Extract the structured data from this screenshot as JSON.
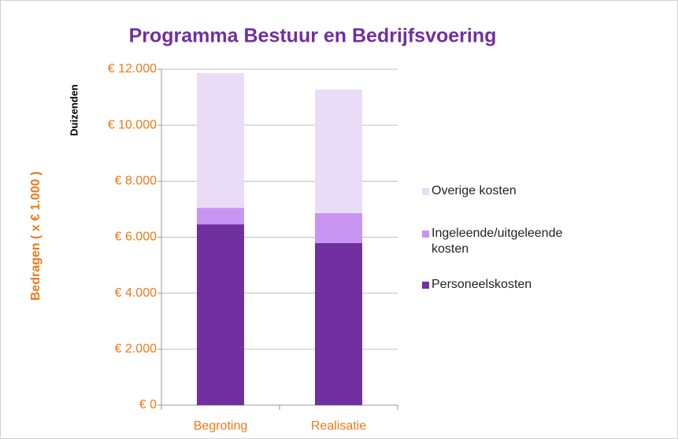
{
  "chart_data": {
    "type": "bar",
    "stacked": true,
    "title": "Programma Bestuur en Bedrijfsvoering",
    "y_axis_title": "Bedragen  ( x € 1.000 )",
    "y_axis_unit": "Duizenden",
    "categories": [
      "Begroting",
      "Realisatie"
    ],
    "series": [
      {
        "name": "Personeelskosten",
        "color": "#7030a0",
        "values": [
          6460,
          5790
        ]
      },
      {
        "name": "Ingeleende/uitgeleende kosten",
        "color": "#c896f2",
        "values": [
          590,
          1070
        ]
      },
      {
        "name": "Overige kosten",
        "color": "#e9dcf6",
        "values": [
          4810,
          4410
        ]
      }
    ],
    "ylim": [
      0,
      12000
    ],
    "yticks": [
      {
        "value": 0,
        "label": "€ 0"
      },
      {
        "value": 2000,
        "label": "€ 2.000"
      },
      {
        "value": 4000,
        "label": "€ 4.000"
      },
      {
        "value": 6000,
        "label": "€ 6.000"
      },
      {
        "value": 8000,
        "label": "€ 8.000"
      },
      {
        "value": 10000,
        "label": "€ 10.000"
      },
      {
        "value": 12000,
        "label": "€ 12.000"
      }
    ],
    "grid": true,
    "legend": "right"
  }
}
